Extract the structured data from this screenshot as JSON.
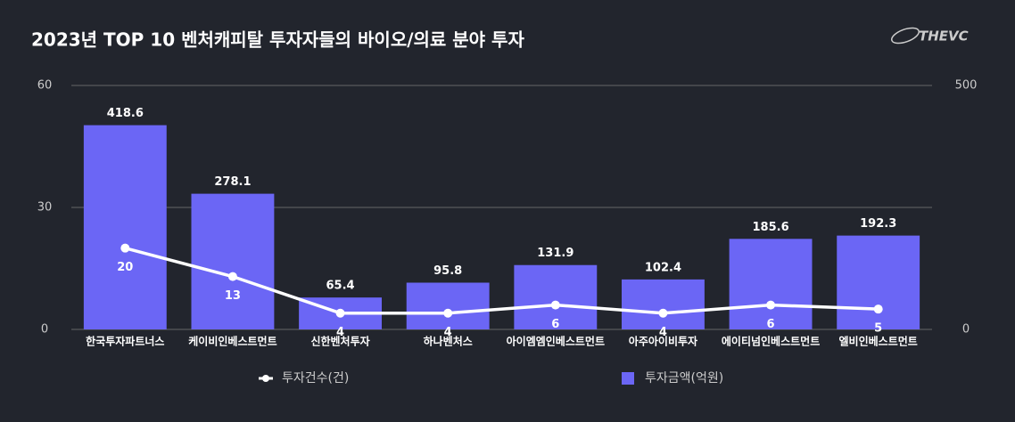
{
  "chart_data": {
    "type": "combo",
    "title": "2023년 TOP 10 벤처캐피탈 투자자들의 바이오/의료 분야 투자",
    "logo": "THEVC",
    "categories": [
      "한국투자파트너스",
      "케이비인베스트먼트",
      "신한벤처투자",
      "하나벤처스",
      "아이엠엠인베스트먼트",
      "아주아이비투자",
      "에이티넘인베스트먼트",
      "엘비인베스트먼트"
    ],
    "series": [
      {
        "name": "투자건수(건)",
        "type": "line",
        "color": "#ffffff",
        "values": [
          20,
          13,
          4,
          4,
          6,
          4,
          6,
          5
        ]
      },
      {
        "name": "투자금액(억원)",
        "type": "bar",
        "axis": "y2",
        "color": "#6b66f5",
        "values": [
          418.6,
          278.1,
          65.4,
          95.8,
          131.9,
          102.4,
          185.6,
          192.3
        ]
      }
    ],
    "ylim": [
      0,
      60
    ],
    "yticks": [
      0,
      30,
      60
    ],
    "y2lim": [
      0,
      500
    ],
    "y2ticks": [
      0,
      500
    ],
    "grid": true
  }
}
